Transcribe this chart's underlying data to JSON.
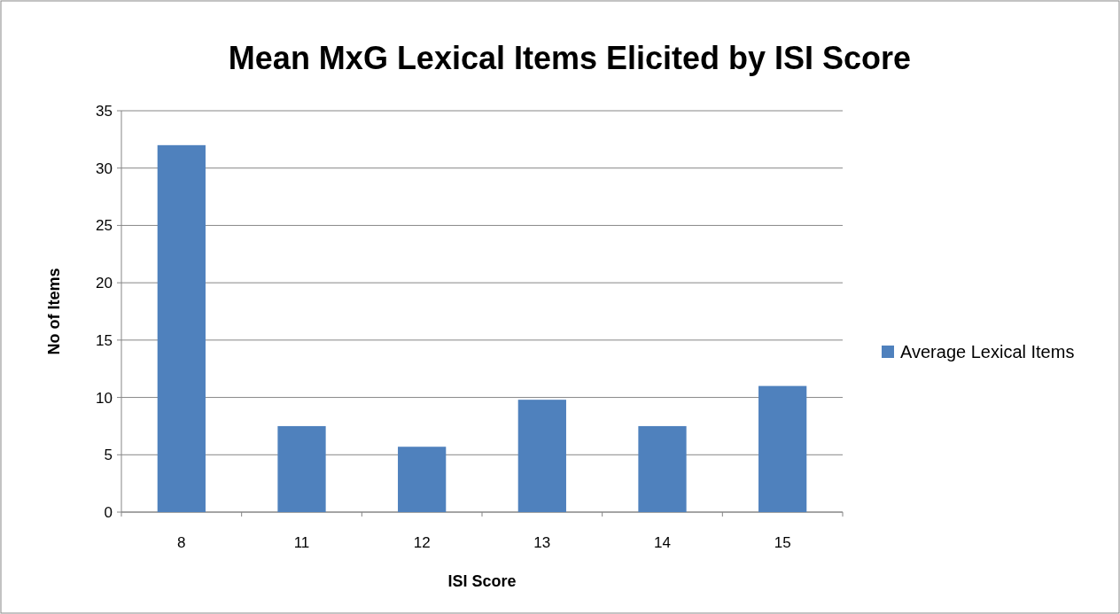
{
  "chart_data": {
    "type": "bar",
    "title": "Mean MxG Lexical Items Elicited by ISI Score",
    "xlabel": "ISI Score",
    "ylabel": "No of Items",
    "categories": [
      "8",
      "11",
      "12",
      "13",
      "14",
      "15"
    ],
    "series": [
      {
        "name": "Average Lexical Items",
        "color": "#4f81bd",
        "values": [
          32,
          7.5,
          5.7,
          9.8,
          7.5,
          11
        ]
      }
    ],
    "ylim": [
      0,
      35
    ],
    "yticks": [
      0,
      5,
      10,
      15,
      20,
      25,
      30,
      35
    ],
    "grid": "y",
    "legend": "right"
  }
}
